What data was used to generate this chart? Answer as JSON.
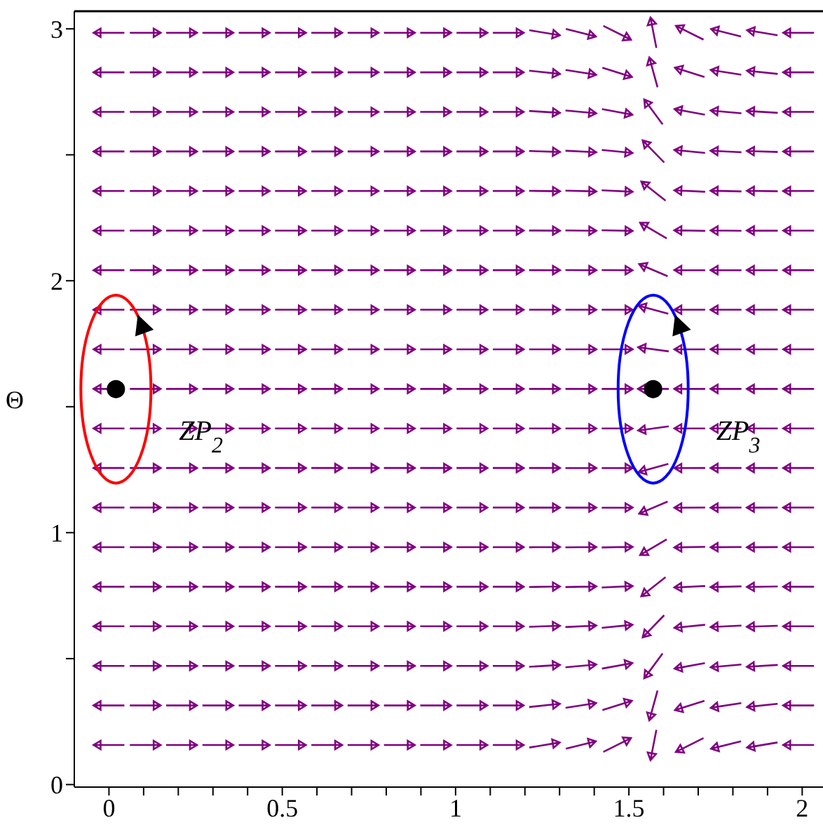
{
  "chart_data": {
    "type": "scatter",
    "ylabel": "Θ",
    "xlim": [
      -0.1,
      2.06
    ],
    "ylim": [
      -0.01,
      3.07
    ],
    "xticks": [
      0,
      {
        "value": 0.1,
        "label": null
      },
      {
        "value": 0.2,
        "label": null
      },
      {
        "value": 0.3,
        "label": null
      },
      {
        "value": 0.4,
        "label": null
      },
      0.5,
      {
        "value": 0.6,
        "label": null
      },
      {
        "value": 0.7,
        "label": null
      },
      {
        "value": 0.8,
        "label": null
      },
      {
        "value": 0.9,
        "label": null
      },
      1,
      {
        "value": 1.1,
        "label": null
      },
      {
        "value": 1.2,
        "label": null
      },
      {
        "value": 1.3,
        "label": null
      },
      {
        "value": 1.4,
        "label": null
      },
      1.5,
      {
        "value": 1.6,
        "label": null
      },
      {
        "value": 1.7,
        "label": null
      },
      {
        "value": 1.8,
        "label": null
      },
      {
        "value": 1.9,
        "label": null
      },
      2
    ],
    "yticks": [
      0,
      {
        "value": 0.5,
        "label": null
      },
      1,
      {
        "value": 1.5,
        "label": null
      },
      2,
      {
        "value": 2.5,
        "label": null
      },
      3
    ],
    "series": [
      {
        "color": "#000000",
        "marker": "circle",
        "x": [
          0.02,
          1.57
        ],
        "values": [
          1.57,
          1.57
        ]
      }
    ],
    "annotations": [
      "ZP$_{2}$",
      "ZP$_{3}$"
    ]
  }
}
